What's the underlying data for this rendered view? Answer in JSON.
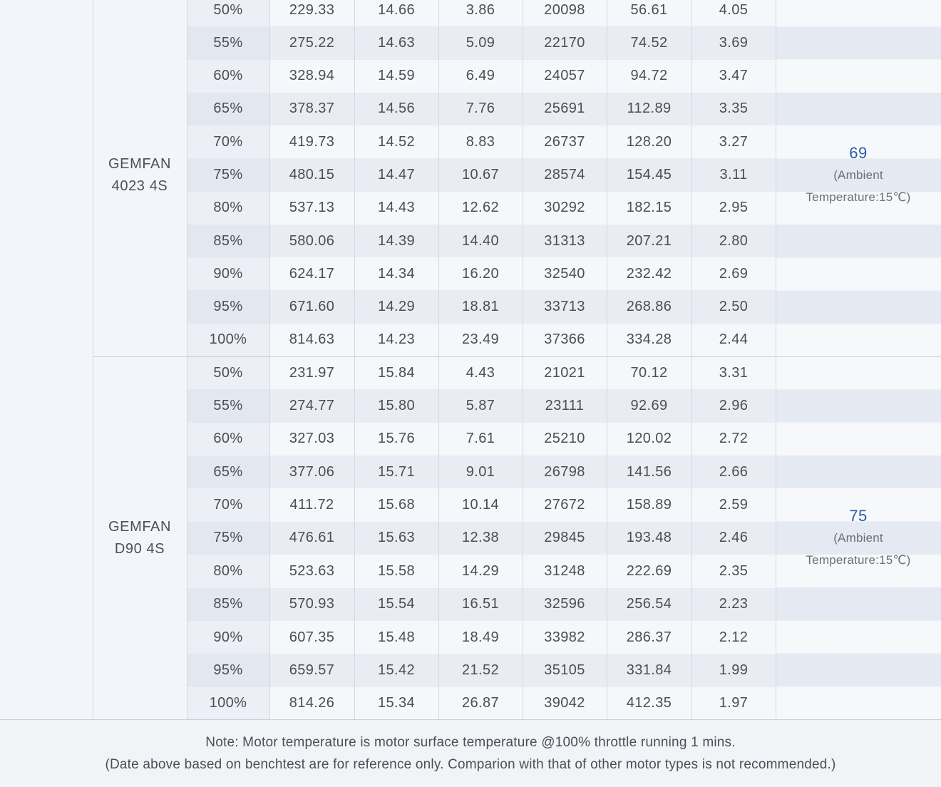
{
  "colors": {
    "accent_blue": "#2d5ba5",
    "text_dark": "#4a4e55",
    "row_light": "#f5f7fa",
    "row_dark": "#e9edf3"
  },
  "table": {
    "sections": [
      {
        "motor_line1": "GEMFAN",
        "motor_line2": "4023 4S",
        "temperature_value": "69",
        "temperature_note_line1": "(Ambient",
        "temperature_note_line2": "Temperature:15℃)",
        "rows": [
          [
            "50%",
            "229.33",
            "14.66",
            "3.86",
            "20098",
            "56.61",
            "4.05"
          ],
          [
            "55%",
            "275.22",
            "14.63",
            "5.09",
            "22170",
            "74.52",
            "3.69"
          ],
          [
            "60%",
            "328.94",
            "14.59",
            "6.49",
            "24057",
            "94.72",
            "3.47"
          ],
          [
            "65%",
            "378.37",
            "14.56",
            "7.76",
            "25691",
            "112.89",
            "3.35"
          ],
          [
            "70%",
            "419.73",
            "14.52",
            "8.83",
            "26737",
            "128.20",
            "3.27"
          ],
          [
            "75%",
            "480.15",
            "14.47",
            "10.67",
            "28574",
            "154.45",
            "3.11"
          ],
          [
            "80%",
            "537.13",
            "14.43",
            "12.62",
            "30292",
            "182.15",
            "2.95"
          ],
          [
            "85%",
            "580.06",
            "14.39",
            "14.40",
            "31313",
            "207.21",
            "2.80"
          ],
          [
            "90%",
            "624.17",
            "14.34",
            "16.20",
            "32540",
            "232.42",
            "2.69"
          ],
          [
            "95%",
            "671.60",
            "14.29",
            "18.81",
            "33713",
            "268.86",
            "2.50"
          ],
          [
            "100%",
            "814.63",
            "14.23",
            "23.49",
            "37366",
            "334.28",
            "2.44"
          ]
        ]
      },
      {
        "motor_line1": "GEMFAN",
        "motor_line2": "D90 4S",
        "temperature_value": "75",
        "temperature_note_line1": "(Ambient",
        "temperature_note_line2": "Temperature:15℃)",
        "rows": [
          [
            "50%",
            "231.97",
            "15.84",
            "4.43",
            "21021",
            "70.12",
            "3.31"
          ],
          [
            "55%",
            "274.77",
            "15.80",
            "5.87",
            "23111",
            "92.69",
            "2.96"
          ],
          [
            "60%",
            "327.03",
            "15.76",
            "7.61",
            "25210",
            "120.02",
            "2.72"
          ],
          [
            "65%",
            "377.06",
            "15.71",
            "9.01",
            "26798",
            "141.56",
            "2.66"
          ],
          [
            "70%",
            "411.72",
            "15.68",
            "10.14",
            "27672",
            "158.89",
            "2.59"
          ],
          [
            "75%",
            "476.61",
            "15.63",
            "12.38",
            "29845",
            "193.48",
            "2.46"
          ],
          [
            "80%",
            "523.63",
            "15.58",
            "14.29",
            "31248",
            "222.69",
            "2.35"
          ],
          [
            "85%",
            "570.93",
            "15.54",
            "16.51",
            "32596",
            "256.54",
            "2.23"
          ],
          [
            "90%",
            "607.35",
            "15.48",
            "18.49",
            "33982",
            "286.37",
            "2.12"
          ],
          [
            "95%",
            "659.57",
            "15.42",
            "21.52",
            "35105",
            "331.84",
            "1.99"
          ],
          [
            "100%",
            "814.26",
            "15.34",
            "26.87",
            "39042",
            "412.35",
            "1.97"
          ]
        ]
      }
    ]
  },
  "note": {
    "line1": "Note: Motor temperature is motor surface temperature @100% throttle running 1 mins.",
    "line2": "(Date above based on benchtest are for reference only. Comparion with that of other motor types is not recommended.)"
  }
}
